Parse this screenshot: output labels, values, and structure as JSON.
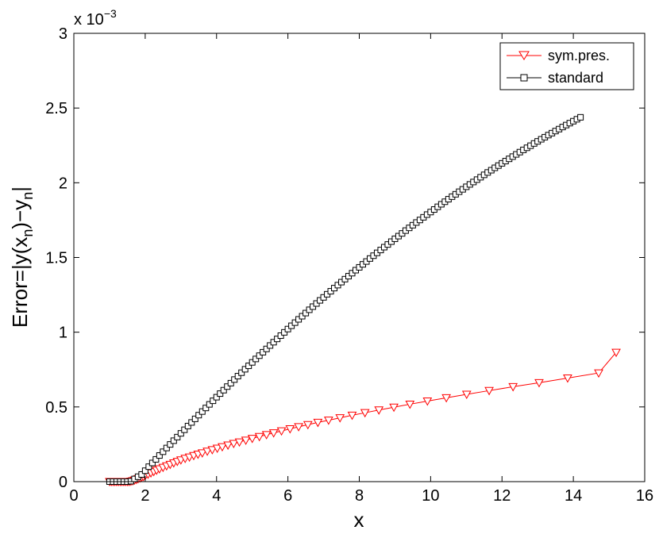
{
  "chart_data": {
    "type": "line",
    "xlabel": "x",
    "ylabel": "Error=|y(x_n)−y_n|",
    "ylabel_parts": {
      "a": "Error=|y(x",
      "sub1": "n",
      "b": ")−y",
      "sub2": "n",
      "c": "|"
    },
    "exponent_label": {
      "base": "x 10",
      "power": "−3"
    },
    "xlim": [
      0,
      16
    ],
    "ylim": [
      0,
      0.003
    ],
    "xticks": [
      0,
      2,
      4,
      6,
      8,
      10,
      12,
      14,
      16
    ],
    "xtick_labels": [
      "0",
      "2",
      "4",
      "6",
      "8",
      "10",
      "12",
      "14",
      "16"
    ],
    "yticks": [
      0,
      0.0005,
      0.001,
      0.0015,
      0.002,
      0.0025,
      0.003
    ],
    "ytick_labels": [
      "0",
      "0.5",
      "1",
      "1.5",
      "2",
      "2.5",
      "3"
    ],
    "grid": false,
    "legend_position": "top-right",
    "series": [
      {
        "name": "sym.pres.",
        "color": "#ff0000",
        "marker": "triangle-down",
        "x": [
          1.0,
          1.05,
          1.1,
          1.15,
          1.2,
          1.25,
          1.3,
          1.35,
          1.4,
          1.45,
          1.5,
          1.55,
          1.6,
          1.65,
          1.7,
          1.75,
          1.8,
          1.85,
          1.9,
          1.95,
          2.0,
          2.08,
          2.16,
          2.24,
          2.32,
          2.4,
          2.5,
          2.6,
          2.7,
          2.8,
          2.9,
          3.0,
          3.12,
          3.24,
          3.36,
          3.48,
          3.6,
          3.74,
          3.88,
          4.02,
          4.16,
          4.32,
          4.48,
          4.64,
          4.82,
          5.0,
          5.2,
          5.4,
          5.6,
          5.82,
          6.06,
          6.3,
          6.56,
          6.84,
          7.14,
          7.46,
          7.8,
          8.16,
          8.55,
          8.97,
          9.42,
          9.91,
          10.44,
          11.01,
          11.64,
          12.31,
          13.04,
          13.84,
          14.71,
          15.2
        ],
        "y": [
          0.0,
          0.0,
          0.0,
          0.0,
          0.0,
          0.0,
          0.0,
          0.0,
          0.0,
          0.0,
          0.0,
          0.0,
          2e-06,
          5e-06,
          1e-05,
          1.4e-05,
          1.9e-05,
          2.4e-05,
          2.9e-05,
          3.4e-05,
          4e-05,
          4.9e-05,
          5.8e-05,
          6.7e-05,
          7.6e-05,
          8.5e-05,
          9.5e-05,
          0.000105,
          0.000115,
          0.000125,
          0.000135,
          0.000145,
          0.000155,
          0.000164,
          0.000174,
          0.000183,
          0.000192,
          0.000203,
          0.000213,
          0.000223,
          0.000233,
          0.000244,
          0.000255,
          0.000265,
          0.000277,
          0.000289,
          0.000301,
          0.000314,
          0.000326,
          0.000339,
          0.000353,
          0.000367,
          0.000381,
          0.000396,
          0.000411,
          0.000427,
          0.000444,
          0.000461,
          0.000479,
          0.000498,
          0.000518,
          0.000539,
          0.000561,
          0.000584,
          0.000609,
          0.000635,
          0.000662,
          0.000693,
          0.000727,
          0.000865
        ]
      },
      {
        "name": "standard",
        "color": "#000000",
        "marker": "square",
        "x": [
          1.0,
          1.1,
          1.2,
          1.3,
          1.4,
          1.5,
          1.6,
          1.7,
          1.8,
          1.9,
          2.0,
          2.1,
          2.2,
          2.3,
          2.4,
          2.5,
          2.6,
          2.7,
          2.8,
          2.9,
          3.0,
          3.1,
          3.2,
          3.3,
          3.4,
          3.5,
          3.6,
          3.7,
          3.8,
          3.9,
          4.0,
          4.1,
          4.2,
          4.3,
          4.4,
          4.5,
          4.6,
          4.7,
          4.8,
          4.9,
          5.0,
          5.1,
          5.2,
          5.3,
          5.4,
          5.5,
          5.6,
          5.7,
          5.8,
          5.9,
          6.0,
          6.1,
          6.2,
          6.3,
          6.4,
          6.5,
          6.6,
          6.7,
          6.8,
          6.9,
          7.0,
          7.1,
          7.2,
          7.3,
          7.4,
          7.5,
          7.6,
          7.7,
          7.8,
          7.9,
          8.0,
          8.1,
          8.2,
          8.3,
          8.4,
          8.5,
          8.6,
          8.7,
          8.8,
          8.9,
          9.0,
          9.1,
          9.2,
          9.3,
          9.4,
          9.5,
          9.6,
          9.7,
          9.8,
          9.9,
          10.0,
          10.1,
          10.2,
          10.3,
          10.4,
          10.5,
          10.6,
          10.7,
          10.8,
          10.9,
          11.0,
          11.1,
          11.2,
          11.3,
          11.4,
          11.5,
          11.6,
          11.7,
          11.8,
          11.9,
          12.0,
          12.1,
          12.2,
          12.3,
          12.4,
          12.5,
          12.6,
          12.7,
          12.8,
          12.9,
          13.0,
          13.1,
          13.2,
          13.3,
          13.4,
          13.5,
          13.6,
          13.7,
          13.8,
          13.9,
          14.0,
          14.1,
          14.2
        ],
        "y": [
          0.0,
          0.0,
          0.0,
          0.0,
          0.0,
          0.0,
          3e-06,
          1.8e-05,
          3.3e-05,
          4.8e-05,
          7.3e-05,
          0.0001,
          0.000125,
          0.000149,
          0.000175,
          0.0002,
          0.000225,
          0.000249,
          0.000274,
          0.000298,
          0.000323,
          0.000347,
          0.000372,
          0.000396,
          0.00042,
          0.000445,
          0.000469,
          0.000493,
          0.000517,
          0.000541,
          0.000565,
          0.000589,
          0.000612,
          0.000636,
          0.000659,
          0.000683,
          0.000706,
          0.000729,
          0.000752,
          0.000775,
          0.000798,
          0.000821,
          0.000843,
          0.000866,
          0.000888,
          0.000911,
          0.000933,
          0.000955,
          0.000977,
          0.000999,
          0.001021,
          0.001043,
          0.001064,
          0.001086,
          0.001107,
          0.001128,
          0.00115,
          0.001171,
          0.001192,
          0.001213,
          0.001233,
          0.001254,
          0.001274,
          0.001295,
          0.001315,
          0.001335,
          0.001355,
          0.001375,
          0.001395,
          0.001415,
          0.001434,
          0.001454,
          0.001473,
          0.001493,
          0.001512,
          0.001531,
          0.00155,
          0.001569,
          0.001587,
          0.001606,
          0.001625,
          0.001643,
          0.001661,
          0.00168,
          0.001698,
          0.001716,
          0.001734,
          0.001751,
          0.001769,
          0.001787,
          0.001804,
          0.001821,
          0.001839,
          0.001856,
          0.001873,
          0.00189,
          0.001907,
          0.001923,
          0.00194,
          0.001956,
          0.001973,
          0.001989,
          0.002005,
          0.002021,
          0.002037,
          0.002053,
          0.002069,
          0.002084,
          0.0021,
          0.002115,
          0.00213,
          0.002145,
          0.00216,
          0.002175,
          0.00219,
          0.002205,
          0.00222,
          0.002234,
          0.002248,
          0.002263,
          0.002277,
          0.002291,
          0.002305,
          0.002319,
          0.002332,
          0.002346,
          0.002359,
          0.002373,
          0.002386,
          0.002399,
          0.002412,
          0.002425,
          0.002438
        ]
      }
    ]
  }
}
